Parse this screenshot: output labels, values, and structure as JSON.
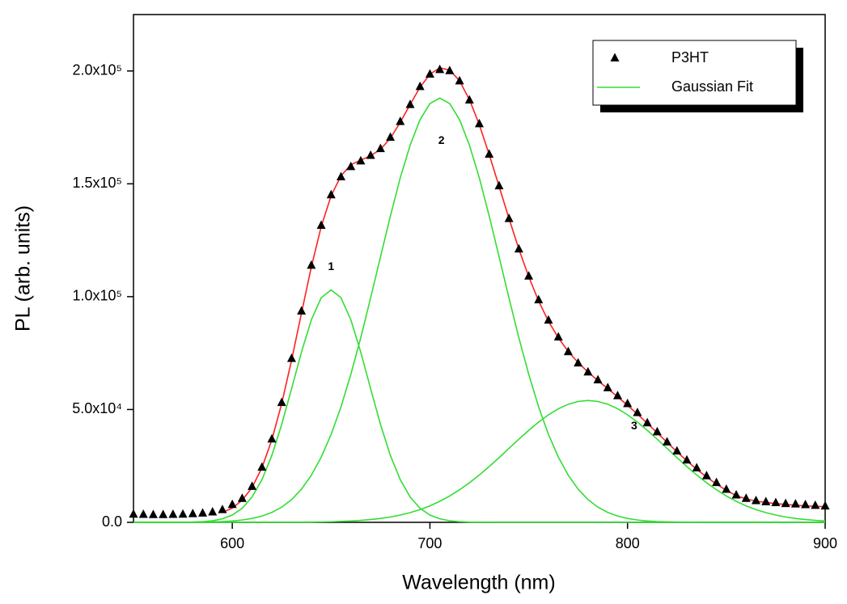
{
  "chart_data": {
    "type": "scatter",
    "xlabel": "Wavelength (nm)",
    "ylabel": "PL (arb. units)",
    "xlim": [
      550,
      900
    ],
    "xticks": [
      600,
      700,
      800,
      900
    ],
    "ylim": [
      0,
      225000
    ],
    "yticks": [
      {
        "value": 0,
        "label": "0.0"
      },
      {
        "value": 50000,
        "label": "5.0x10⁴"
      },
      {
        "value": 100000,
        "label": "1.0x10⁵"
      },
      {
        "value": 150000,
        "label": "1.5x10⁵"
      },
      {
        "value": 200000,
        "label": "2.0x10⁵"
      }
    ],
    "grid": false,
    "legend": "upper right",
    "x": [
      550,
      555,
      560,
      565,
      570,
      575,
      580,
      585,
      590,
      595,
      600,
      605,
      610,
      615,
      620,
      625,
      630,
      635,
      640,
      645,
      650,
      655,
      660,
      665,
      670,
      675,
      680,
      685,
      690,
      695,
      700,
      705,
      710,
      715,
      720,
      725,
      730,
      735,
      740,
      745,
      750,
      755,
      760,
      765,
      770,
      775,
      780,
      785,
      790,
      795,
      800,
      805,
      810,
      815,
      820,
      825,
      830,
      835,
      840,
      845,
      850,
      855,
      860,
      865,
      870,
      875,
      880,
      885,
      890,
      895,
      900
    ],
    "series": [
      {
        "name": "P3HT",
        "style": "marker",
        "color": "#000000",
        "values": [
          3500,
          3400,
          3300,
          3300,
          3400,
          3500,
          3700,
          4000,
          4500,
          5500,
          7800,
          10500,
          15800,
          24300,
          36800,
          53000,
          72500,
          93500,
          113800,
          131500,
          145000,
          153000,
          157500,
          160000,
          162500,
          165500,
          170500,
          177500,
          185000,
          193000,
          198500,
          200500,
          200000,
          195500,
          187000,
          176500,
          163000,
          149000,
          134500,
          121000,
          109000,
          98500,
          89500,
          82000,
          75500,
          70500,
          66500,
          63000,
          59500,
          56000,
          52500,
          48500,
          44000,
          40000,
          35500,
          31500,
          27500,
          24000,
          20500,
          17500,
          14500,
          12000,
          10500,
          9500,
          9000,
          8600,
          8200,
          8000,
          7700,
          7400,
          7100
        ]
      },
      {
        "style": "line",
        "color": "#ff2020",
        "values": [
          null,
          null,
          null,
          null,
          null,
          null,
          null,
          null,
          null,
          4401,
          6329,
          9770,
          15449,
          24173,
          36511,
          52623,
          71850,
          92674,
          113199,
          131075,
          144690,
          153543,
          158424,
          160540,
          162408,
          165274,
          170220,
          177254,
          185157,
          192792,
          198586,
          201365,
          200439,
          195631,
          187282,
          176182,
          162972,
          148862,
          134703,
          121108,
          108871,
          98056,
          89071,
          81724,
          75694,
          70770,
          66577,
          62798,
          59206,
          55610,
          51871,
          47954,
          43864,
          39674,
          35445,
          31279,
          27277,
          23512,
          20048,
          16931,
          14180,
          11810,
          10400,
          9400,
          8800,
          8300,
          7900,
          7600,
          7300,
          7100,
          6900
        ]
      },
      {
        "name": "Gaussian Fit",
        "label": "1",
        "style": "line",
        "color": "#33dd33",
        "values": [
          0,
          0,
          0,
          0,
          15,
          42,
          116,
          296,
          703,
          1555,
          3224,
          6232,
          11227,
          18880,
          29613,
          43363,
          59225,
          75396,
          89713,
          99498,
          103000,
          99498,
          89713,
          75396,
          59225,
          43363,
          29613,
          18880,
          11227,
          6232,
          3224,
          1555,
          703,
          296,
          116,
          42,
          15,
          0,
          0,
          0,
          0,
          0,
          0,
          0,
          0,
          0,
          0,
          0,
          0,
          0,
          0,
          0,
          0,
          0,
          0,
          0,
          0,
          0,
          0,
          0,
          0,
          0,
          0,
          0,
          0,
          0,
          0,
          0,
          0,
          0,
          0
        ]
      },
      {
        "label": "2",
        "style": "line",
        "color": "#33dd33",
        "values": [
          0,
          0,
          0,
          8,
          14,
          28,
          56,
          105,
          194,
          346,
          605,
          1034,
          1716,
          2782,
          4380,
          6730,
          10077,
          14702,
          20868,
          28896,
          38916,
          51136,
          65612,
          81780,
          99452,
          117688,
          135736,
          152656,
          167132,
          178412,
          185556,
          188000,
          185556,
          178412,
          167132,
          152656,
          135736,
          117688,
          99452,
          81780,
          65612,
          51136,
          38916,
          28896,
          20868,
          14702,
          10077,
          6730,
          4380,
          2782,
          1716,
          1034,
          605,
          346,
          194,
          105,
          56,
          28,
          14,
          8,
          0,
          0,
          0,
          0,
          0,
          0,
          0,
          0,
          0,
          0,
          0
        ]
      },
      {
        "label": "3",
        "style": "line",
        "color": "#33dd33",
        "values": [
          0,
          0,
          0,
          0,
          0,
          0,
          0,
          0,
          0,
          0,
          0,
          4,
          6,
          11,
          18,
          30,
          48,
          76,
          118,
          181,
          274,
          409,
          599,
          864,
          1231,
          1723,
          2371,
          3218,
          4298,
          5648,
          7306,
          9310,
          11680,
          14423,
          17534,
          20984,
          24721,
          28674,
          32751,
          36828,
          40759,
          44420,
          47655,
          50328,
          52326,
          53568,
          54000,
          53568,
          52326,
          50328,
          47655,
          44420,
          40759,
          36828,
          32751,
          28674,
          24721,
          20984,
          17534,
          14423,
          11680,
          9310,
          7306,
          5648,
          4298,
          3218,
          2371,
          1723,
          1231,
          864,
          599
        ]
      }
    ]
  }
}
